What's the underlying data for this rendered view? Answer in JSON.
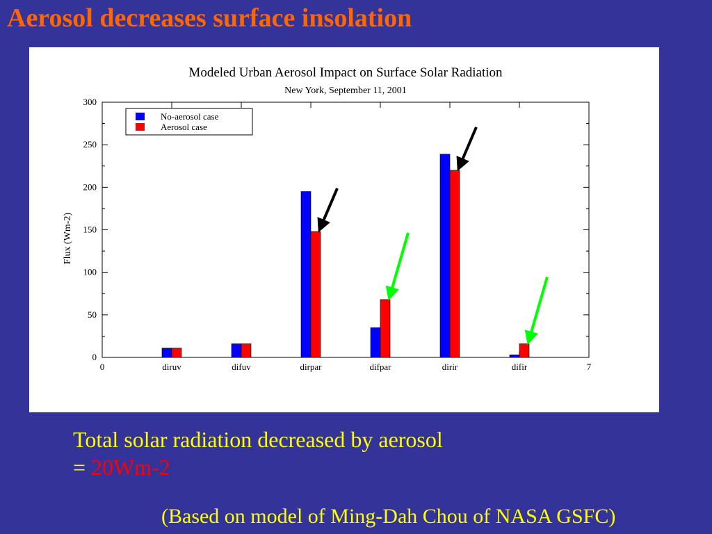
{
  "slide": {
    "title": "Aerosol decreases surface insolation",
    "caption_line1": "Total solar radiation decreased by aerosol",
    "caption_eq": "= ",
    "caption_value": "20Wm-2",
    "credit": "(Based on model of Ming-Dah Chou of NASA GSFC)"
  },
  "chart_data": {
    "type": "bar",
    "title": "Modeled Urban Aerosol Impact on Surface Solar Radiation",
    "subtitle": "New York, September 11, 2001",
    "xlabel": "",
    "ylabel": "Flux (Wm-2)",
    "xlim": [
      0,
      7
    ],
    "ylim": [
      0,
      300
    ],
    "yticks": [
      0,
      50,
      100,
      150,
      200,
      250,
      300
    ],
    "x_end_labels": [
      "0",
      "7"
    ],
    "categories": [
      "diruv",
      "difuv",
      "dirpar",
      "difpar",
      "dirir",
      "difir"
    ],
    "series": [
      {
        "name": "No-aerosol case",
        "color": "#0000ff",
        "values": [
          11,
          16,
          195,
          35,
          239,
          3
        ]
      },
      {
        "name": "Aerosol case",
        "color": "#ff0000",
        "values": [
          11,
          16,
          148,
          68,
          220,
          16
        ]
      }
    ],
    "legend_position": "top-left",
    "grid": false,
    "annotations": [
      {
        "type": "arrow",
        "color": "#000000",
        "category": "dirpar"
      },
      {
        "type": "arrow",
        "color": "#000000",
        "category": "dirir"
      },
      {
        "type": "arrow",
        "color": "#00ff00",
        "category": "difpar"
      },
      {
        "type": "arrow",
        "color": "#00ff00",
        "category": "difir"
      }
    ]
  }
}
